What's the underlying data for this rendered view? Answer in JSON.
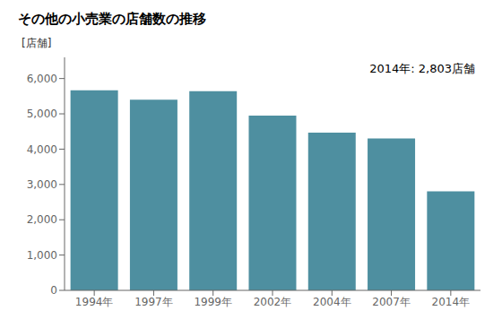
{
  "chart_data": {
    "type": "bar",
    "title": "その他の小売業の店舗数の推移",
    "ylabel": "[店舗]",
    "annotation": "2014年: 2,803店舗",
    "categories": [
      "1994年",
      "1997年",
      "1999年",
      "2002年",
      "2004年",
      "2007年",
      "2014年"
    ],
    "values": [
      5670,
      5400,
      5640,
      4950,
      4470,
      4300,
      2803
    ],
    "color": "#4E8FA0",
    "ylim": [
      0,
      6600
    ],
    "yticks": [
      0,
      {
        "value": 1000,
        "label": "1,000"
      },
      {
        "value": 2000,
        "label": "2,000"
      },
      {
        "value": 3000,
        "label": "3,000"
      },
      {
        "value": 4000,
        "label": "4,000"
      },
      {
        "value": 5000,
        "label": "5,000"
      },
      {
        "value": 6000,
        "label": "6,000"
      }
    ],
    "grid": false
  }
}
